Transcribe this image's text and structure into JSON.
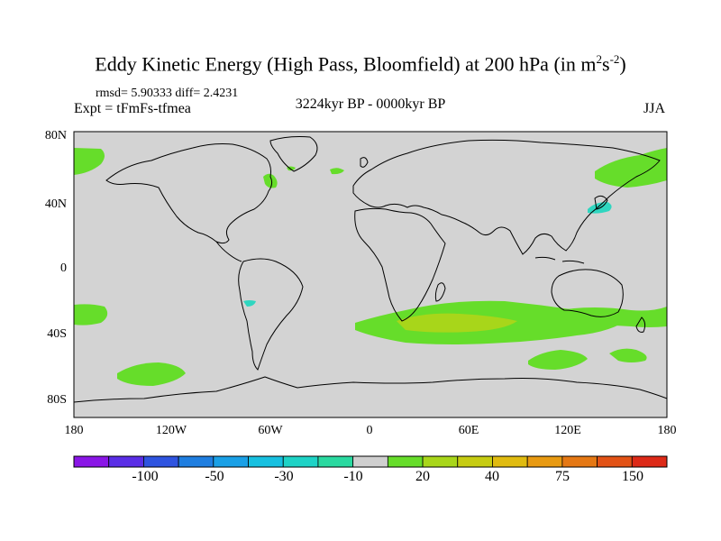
{
  "title": {
    "main": "Eddy Kinetic Energy (High Pass, Bloomfield) at 200 hPa (in m",
    "sup1": "2",
    "mid": "s",
    "sup2": "-2",
    "close": ")"
  },
  "stats": "rmsd= 5.90333  diff= 2.4231",
  "experiment": "Expt = tFmFs-tfmea",
  "period": "3224kyr BP - 0000kyr BP",
  "season": "JJA",
  "map": {
    "lat_ticks": [
      "80N",
      "40N",
      "0",
      "40S",
      "80S"
    ],
    "lon_ticks": [
      "180",
      "120W",
      "60W",
      "0",
      "60E",
      "120E",
      "180"
    ],
    "background_color": "#d3d3d3"
  },
  "chart_data": {
    "type": "heatmap",
    "projection": "cylindrical equidistant",
    "lon_range": [
      -180,
      180
    ],
    "lat_range": [
      -90,
      90
    ],
    "colorbar": {
      "tick_labels": [
        "-100",
        "-50",
        "-30",
        "-10",
        "20",
        "40",
        "75",
        "150"
      ],
      "colors": [
        "#8a16e6",
        "#5a2ee6",
        "#2f54e0",
        "#1f7ee0",
        "#1aa0e6",
        "#17c0e0",
        "#1ed3c6",
        "#2ad9a0",
        "#cfcfcf",
        "#66dd2a",
        "#a8d61a",
        "#c6cc12",
        "#e0bb10",
        "#e89a12",
        "#e57814",
        "#e25216",
        "#dd2a18"
      ]
    },
    "regions": [
      {
        "name": "north-pacific-east",
        "lon": [
          -180,
          -160
        ],
        "lat": [
          60,
          72
        ],
        "level": "20"
      },
      {
        "name": "hudson-labrador",
        "lon": [
          -65,
          -60
        ],
        "lat": [
          45,
          55
        ],
        "level": "20"
      },
      {
        "name": "labrador-sea-small",
        "lon": [
          -50,
          -46
        ],
        "lat": [
          56,
          58
        ],
        "level": "20"
      },
      {
        "name": "north-atlantic",
        "lon": [
          -25,
          -15
        ],
        "lat": [
          58,
          62
        ],
        "level": "20"
      },
      {
        "name": "north-pacific-west",
        "lon": [
          135,
          180
        ],
        "lat": [
          50,
          68
        ],
        "level": "20"
      },
      {
        "name": "japan",
        "lon": [
          130,
          145
        ],
        "lat": [
          33,
          42
        ],
        "level": "-10"
      },
      {
        "name": "andes",
        "lon": [
          -72,
          -66
        ],
        "lat": [
          -20,
          -24
        ],
        "level": "-10"
      },
      {
        "name": "south-pacific-east",
        "lon": [
          -180,
          -165
        ],
        "lat": [
          -25,
          -35
        ],
        "level": "20"
      },
      {
        "name": "southern-indian-ocean",
        "lon": [
          -10,
          120
        ],
        "lat": [
          -25,
          -45
        ],
        "level": "20"
      },
      {
        "name": "southern-indian-ocean-core",
        "lon": [
          20,
          90
        ],
        "lat": [
          -28,
          -38
        ],
        "level": "40"
      },
      {
        "name": "southwest-pacific",
        "lon": [
          115,
          180
        ],
        "lat": [
          -25,
          -40
        ],
        "level": "20"
      },
      {
        "name": "south-of-australia",
        "lon": [
          100,
          145
        ],
        "lat": [
          -45,
          -60
        ],
        "level": "20"
      },
      {
        "name": "tasman-sea",
        "lon": [
          145,
          170
        ],
        "lat": [
          -50,
          -58
        ],
        "level": "20"
      },
      {
        "name": "south-pacific-high-lat",
        "lon": [
          -150,
          -115
        ],
        "lat": [
          -55,
          -68
        ],
        "level": "20"
      }
    ]
  }
}
